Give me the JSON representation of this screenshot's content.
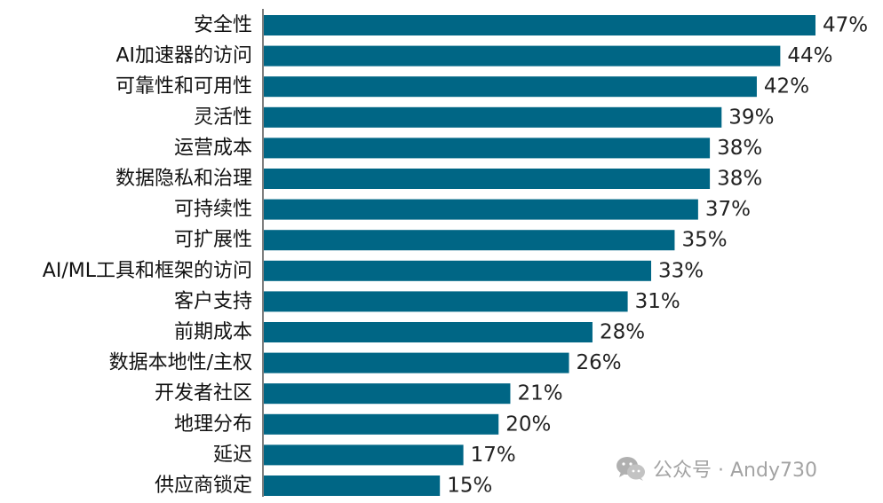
{
  "chart_data": {
    "type": "bar",
    "orientation": "horizontal",
    "title": "",
    "xlabel": "",
    "ylabel": "",
    "xlim": [
      0,
      47
    ],
    "grid": false,
    "bar_color": "#006685",
    "categories": [
      "安全性",
      "AI加速器的访问",
      "可靠性和可用性",
      "灵活性",
      "运营成本",
      "数据隐私和治理",
      "可持续性",
      "可扩展性",
      "AI/ML工具和框架的访问",
      "客户支持",
      "前期成本",
      "数据本地性/主权",
      "开发者社区",
      "地理分布",
      "延迟",
      "供应商锁定"
    ],
    "values": [
      47,
      44,
      42,
      39,
      38,
      38,
      37,
      35,
      33,
      31,
      28,
      26,
      21,
      20,
      17,
      15
    ],
    "value_labels": [
      "47%",
      "44%",
      "42%",
      "39%",
      "38%",
      "38%",
      "37%",
      "35%",
      "33%",
      "31%",
      "28%",
      "26%",
      "21%",
      "20%",
      "17%",
      "15%"
    ]
  },
  "watermark": {
    "icon": "wechat-icon",
    "text": "公众号 · Andy730"
  }
}
